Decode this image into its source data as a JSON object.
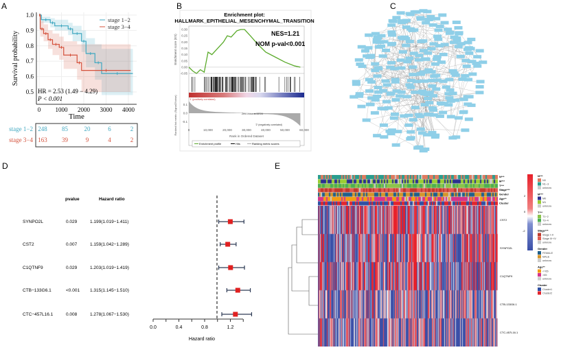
{
  "panels": {
    "a": "A",
    "b": "B",
    "c": "C",
    "d": "D",
    "e": "E"
  },
  "chart_data": [
    {
      "type": "line",
      "panel": "A",
      "xlabel": "Time",
      "ylabel": "Survival probability",
      "xlim": [
        0,
        4200
      ],
      "ylim": [
        0.5,
        1.0
      ],
      "xticks": [
        "0",
        "1000",
        "2000",
        "3000",
        "4000"
      ],
      "yticks": [
        "0.5",
        "0.6",
        "0.7",
        "0.8",
        "0.9",
        "1.0"
      ],
      "grid": true,
      "legend_position": "top-right",
      "annotation": {
        "hr": "HR = 2.53  (1.49 − 4.29)",
        "p": "P < 0.001"
      },
      "series": [
        {
          "name": "stage 1−2",
          "color": "#3fa7c0",
          "x": [
            0,
            100,
            500,
            700,
            1300,
            1500,
            1900,
            2100,
            2500,
            2800,
            4200
          ],
          "y": [
            1.0,
            0.97,
            0.95,
            0.93,
            0.91,
            0.88,
            0.83,
            0.75,
            0.69,
            0.62,
            0.62
          ],
          "ci_low": [
            1.0,
            0.95,
            0.92,
            0.9,
            0.87,
            0.83,
            0.76,
            0.66,
            0.58,
            0.48,
            0.48
          ],
          "ci_high": [
            1.0,
            0.99,
            0.98,
            0.97,
            0.95,
            0.93,
            0.9,
            0.85,
            0.81,
            0.78,
            0.78
          ]
        },
        {
          "name": "stage 3−4",
          "color": "#d4513b",
          "x": [
            0,
            50,
            200,
            400,
            600,
            900,
            1100,
            1700,
            1900,
            4100
          ],
          "y": [
            1.0,
            0.91,
            0.88,
            0.84,
            0.81,
            0.79,
            0.74,
            0.69,
            0.64,
            0.64
          ],
          "ci_low": [
            1.0,
            0.86,
            0.83,
            0.78,
            0.74,
            0.71,
            0.65,
            0.58,
            0.5,
            0.5
          ],
          "ci_high": [
            1.0,
            0.96,
            0.94,
            0.9,
            0.88,
            0.86,
            0.83,
            0.81,
            0.81,
            0.81
          ]
        }
      ],
      "risk_table": {
        "times": [
          0,
          1000,
          2000,
          3000,
          4000
        ],
        "rows": [
          {
            "label": "stage 1−2",
            "values": [
              "248",
              "85",
              "20",
              "6",
              "2"
            ]
          },
          {
            "label": "stage 3−4",
            "values": [
              "163",
              "39",
              "9",
              "4",
              "2"
            ]
          }
        ]
      }
    },
    {
      "type": "line",
      "panel": "B",
      "title_line1": "Enrichment plot:",
      "title_line2": "HALLMARK_EPITHELIAL_MESENCHYMAL_TRANSITION",
      "nes": "NES=1.21",
      "pval": "NOM p-val<0.001",
      "ylabel": "Enrichment score (ES)",
      "ylabel2": "Ranked list metric (Signal2Noise)",
      "xlabel": "Rank in Ordered Dataset",
      "xlim": [
        0,
        60000
      ],
      "ylim": [
        -0.05,
        0.3
      ],
      "yticks": [
        "0.30",
        "0.25",
        "0.20",
        "0.15",
        "0.10",
        "0.05",
        "0.00",
        "-0.05"
      ],
      "xticks": [
        "0",
        "10,000",
        "20,000",
        "30,000",
        "40,000",
        "50,000",
        "60,000"
      ],
      "yticks2": [
        "0.1",
        "0.0",
        "-0.1"
      ],
      "pos_label": "'1' (positively correlated)",
      "neg_label": "'2' (negatively correlated)",
      "zero_cross": "Zero cross at 33724",
      "legend": [
        "Enrichment profile",
        "Hits",
        "Ranking metric scores"
      ],
      "curve_color": "#5aaa2a",
      "x": [
        0,
        2000,
        4000,
        6000,
        8000,
        10000,
        12000,
        15000,
        18000,
        20000,
        22000,
        25000,
        27000,
        29000,
        32000,
        36000,
        40000,
        45000,
        50000,
        55000,
        58000
      ],
      "y": [
        0,
        -0.03,
        -0.05,
        -0.02,
        -0.04,
        0.12,
        0.1,
        0.15,
        0.2,
        0.25,
        0.24,
        0.29,
        0.3,
        0.3,
        0.25,
        0.18,
        0.12,
        0.08,
        0.04,
        0.01,
        0.0
      ]
    },
    {
      "type": "network",
      "panel": "C",
      "node_color": "#8fcfe8"
    },
    {
      "type": "forest",
      "panel": "D",
      "headers": {
        "pvalue": "pvalue",
        "hr": "Hazard ratio"
      },
      "xlabel": "Hazard ratio",
      "xticks": [
        "0.0",
        "0.4",
        "0.8",
        "1.2"
      ],
      "reference": 1.0,
      "rows": [
        {
          "gene": "SYNPO2L",
          "pvalue": "0.029",
          "hr_text": "1.199(1.019−1.411)",
          "hr": 1.199,
          "low": 1.019,
          "high": 1.411
        },
        {
          "gene": "CST2",
          "pvalue": "0.007",
          "hr_text": "1.159(1.042−1.289)",
          "hr": 1.159,
          "low": 1.042,
          "high": 1.289
        },
        {
          "gene": "C1QTNF9",
          "pvalue": "0.029",
          "hr_text": "1.203(1.019−1.419)",
          "hr": 1.203,
          "low": 1.019,
          "high": 1.419
        },
        {
          "gene": "CTB−133G6.1",
          "pvalue": "<0.001",
          "hr_text": "1.315(1.145−1.510)",
          "hr": 1.315,
          "low": 1.145,
          "high": 1.51
        },
        {
          "gene": "CTC−457L16.1",
          "pvalue": "0.008",
          "hr_text": "1.278(1.067−1.530)",
          "hr": 1.278,
          "low": 1.067,
          "high": 1.53
        }
      ]
    },
    {
      "type": "heatmap",
      "panel": "E",
      "rows": [
        "CST2",
        "SYNPO2L",
        "C1QTNF9",
        "CTB-133G6.1",
        "CTC-457L16.1"
      ],
      "annotations": [
        "N***",
        "M***",
        "T***",
        "Stage***",
        "Gender",
        "Age**",
        "Cluster"
      ],
      "scale": {
        "ticks": [
          "2",
          "0",
          "-2"
        ],
        "colors": [
          "#e8202a",
          "#ffffff",
          "#3a4fa8"
        ]
      },
      "legends": [
        {
          "title": "N***",
          "items": [
            {
              "label": "N0",
              "color": "#e07a5f"
            },
            {
              "label": "N1−3",
              "color": "#2a9d8f"
            },
            {
              "label": "unknow",
              "color": "#cccccc"
            }
          ]
        },
        {
          "title": "M***",
          "items": [
            {
              "label": "M0",
              "color": "#2b2f8f"
            },
            {
              "label": "M1",
              "color": "#9acd32"
            },
            {
              "label": "unknow",
              "color": "#cccccc"
            }
          ]
        },
        {
          "title": "T***",
          "items": [
            {
              "label": "T1−2",
              "color": "#8bc34a"
            },
            {
              "label": "T3−4",
              "color": "#4caf50"
            },
            {
              "label": "unknow",
              "color": "#cccccc"
            }
          ]
        },
        {
          "title": "Stage***",
          "items": [
            {
              "label": "Stage I−II",
              "color": "#c0392b"
            },
            {
              "label": "Stage III−IV",
              "color": "#e05a4f"
            },
            {
              "label": "unknow",
              "color": "#cccccc"
            }
          ]
        },
        {
          "title": "Gender",
          "items": [
            {
              "label": "FEMALE",
              "color": "#1f5f8b"
            },
            {
              "label": "MALE",
              "color": "#d4952b"
            },
            {
              "label": "unknow",
              "color": "#cccccc"
            }
          ]
        },
        {
          "title": "Age**",
          "items": [
            {
              "label": "<=65",
              "color": "#f39c12"
            },
            {
              "label": ">65",
              "color": "#d6338a"
            },
            {
              "label": "unknow",
              "color": "#cccccc"
            }
          ]
        },
        {
          "title": "Cluster",
          "items": [
            {
              "label": "Cluster1",
              "color": "#2e4fa3"
            },
            {
              "label": "Cluster2",
              "color": "#e3242b"
            }
          ]
        }
      ]
    }
  ]
}
